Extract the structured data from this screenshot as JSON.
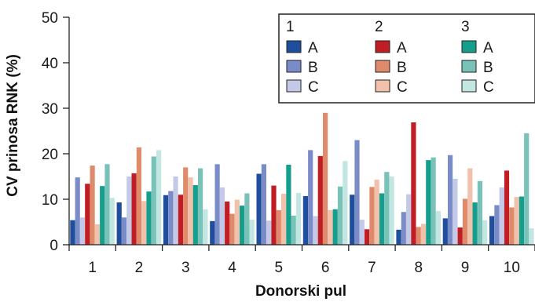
{
  "chart_data": {
    "type": "bar",
    "xlabel": "Donorski pul",
    "ylabel": "CV prinosa RNK (%)",
    "ylim": [
      0,
      50
    ],
    "yticks": [
      0,
      10,
      20,
      30,
      40,
      50
    ],
    "grid": false,
    "legend_placement": "top-right",
    "categories": [
      "1",
      "2",
      "3",
      "4",
      "5",
      "6",
      "7",
      "8",
      "9",
      "10"
    ],
    "groups": [
      {
        "label": "1",
        "items": [
          {
            "label": "A",
            "series": 0
          },
          {
            "label": "B",
            "series": 1
          },
          {
            "label": "C",
            "series": 2
          }
        ]
      },
      {
        "label": "2",
        "items": [
          {
            "label": "A",
            "series": 3
          },
          {
            "label": "B",
            "series": 4
          },
          {
            "label": "C",
            "series": 5
          }
        ]
      },
      {
        "label": "3",
        "items": [
          {
            "label": "A",
            "series": 6
          },
          {
            "label": "B",
            "series": 7
          },
          {
            "label": "C",
            "series": 8
          }
        ]
      }
    ],
    "series": [
      {
        "color": "#1f4e9c",
        "values": [
          5.4,
          9.3,
          10.9,
          5.2,
          15.6,
          10.7,
          11.0,
          3.3,
          5.8,
          6.3
        ]
      },
      {
        "color": "#7a8cc8",
        "values": [
          14.8,
          6.0,
          11.8,
          17.7,
          17.7,
          20.8,
          23.0,
          7.2,
          19.7,
          8.7
        ]
      },
      {
        "color": "#c4c9e8",
        "values": [
          6.0,
          15.0,
          15.0,
          12.6,
          5.3,
          6.3,
          5.5,
          11.1,
          14.5,
          12.6
        ]
      },
      {
        "color": "#c01d24",
        "values": [
          13.4,
          15.7,
          11.0,
          9.5,
          13.0,
          19.5,
          3.4,
          26.9,
          3.8,
          16.3
        ]
      },
      {
        "color": "#e08a6c",
        "values": [
          17.4,
          21.4,
          17.0,
          6.8,
          7.6,
          29.0,
          12.7,
          3.9,
          10.1,
          8.2
        ]
      },
      {
        "color": "#f2c1ac",
        "values": [
          4.5,
          9.6,
          14.8,
          9.9,
          11.2,
          7.6,
          14.3,
          4.6,
          16.8,
          10.5
        ]
      },
      {
        "color": "#169e8c",
        "values": [
          12.9,
          11.7,
          13.1,
          8.6,
          17.6,
          7.8,
          11.3,
          18.6,
          9.3,
          10.6
        ]
      },
      {
        "color": "#79c2b8",
        "values": [
          17.7,
          19.4,
          16.8,
          11.3,
          6.4,
          12.8,
          16.0,
          19.2,
          14.0,
          24.5
        ]
      },
      {
        "color": "#c2e6e2",
        "values": [
          10.3,
          20.8,
          7.8,
          5.5,
          11.4,
          18.4,
          15.0,
          7.4,
          5.4,
          3.6
        ]
      }
    ]
  }
}
